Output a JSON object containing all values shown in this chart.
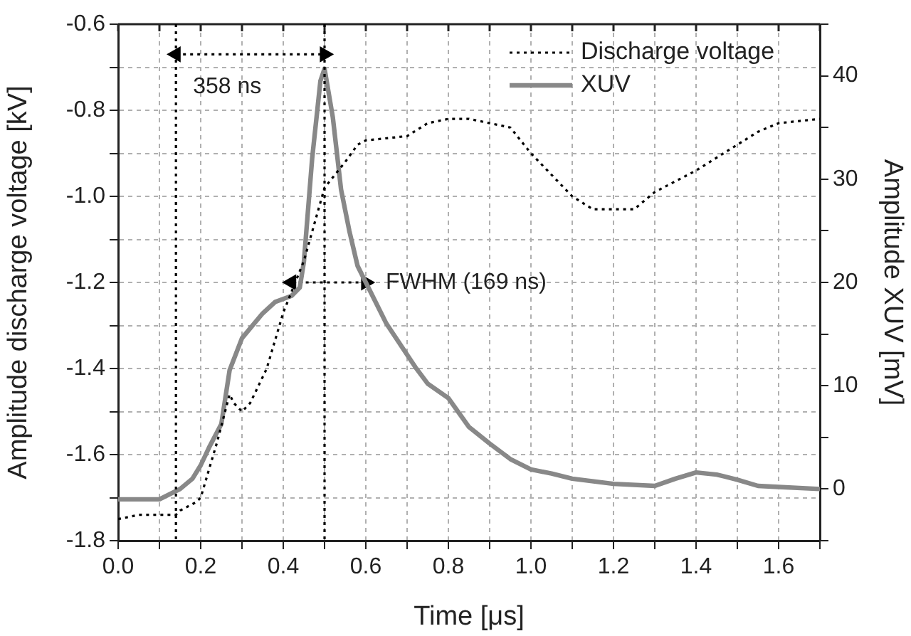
{
  "chart_data": {
    "type": "line",
    "xlabel": "Time [μs]",
    "ylabel": "Amplitude discharge voltage [kV]",
    "y2label": "Amplitude XUV [mV]",
    "series": [
      {
        "name": "Discharge voltage",
        "color": "#000000",
        "line_style": "dotted",
        "axis": "y",
        "x": [
          0,
          0.05,
          0.1,
          0.14,
          0.15,
          0.19,
          0.2,
          0.24,
          0.27,
          0.28,
          0.3,
          0.32,
          0.36,
          0.4,
          0.45,
          0.5,
          0.55,
          0.58,
          0.6,
          0.7,
          0.75,
          0.8,
          0.85,
          0.9,
          0.95,
          1.0,
          1.05,
          1.1,
          1.15,
          1.2,
          1.25,
          1.3,
          1.4,
          1.5,
          1.55,
          1.6,
          1.7
        ],
        "values": [
          -1.75,
          -1.74,
          -1.74,
          -1.74,
          -1.73,
          -1.71,
          -1.7,
          -1.57,
          -1.46,
          -1.48,
          -1.5,
          -1.48,
          -1.4,
          -1.27,
          -1.15,
          -0.98,
          -0.92,
          -0.88,
          -0.87,
          -0.86,
          -0.83,
          -0.82,
          -0.82,
          -0.83,
          -0.84,
          -0.9,
          -0.95,
          -1.0,
          -1.03,
          -1.03,
          -1.03,
          -0.99,
          -0.94,
          -0.88,
          -0.85,
          -0.83,
          -0.82
        ]
      },
      {
        "name": "XUV",
        "color": "#888888",
        "line_style": "solid",
        "axis": "y2",
        "x": [
          0,
          0.1,
          0.15,
          0.18,
          0.2,
          0.22,
          0.25,
          0.27,
          0.3,
          0.35,
          0.38,
          0.42,
          0.44,
          0.45,
          0.47,
          0.49,
          0.5,
          0.52,
          0.54,
          0.56,
          0.58,
          0.6,
          0.65,
          0.72,
          0.75,
          0.8,
          0.85,
          0.9,
          0.95,
          1.0,
          1.05,
          1.1,
          1.2,
          1.3,
          1.35,
          1.4,
          1.45,
          1.5,
          1.55,
          1.6,
          1.7
        ],
        "values": [
          -1,
          -1,
          0,
          1,
          2.3,
          4,
          6.3,
          11.5,
          14.6,
          17,
          18.1,
          18.7,
          19.5,
          22,
          32,
          39.5,
          40.7,
          36,
          29,
          25,
          21.6,
          20,
          16,
          11.8,
          10.2,
          8.8,
          6,
          4.4,
          2.9,
          1.9,
          1.5,
          1,
          0.5,
          0.3,
          1,
          1.6,
          1.4,
          0.9,
          0.3,
          0.2,
          0
        ]
      },
      {
        "color": "#000000",
        "line_style": "dotted",
        "marker": "triangle",
        "axis": "y",
        "x": [
          0.14,
          0.5
        ],
        "values": [
          -0.67,
          -0.67
        ]
      },
      {
        "color": "#000000",
        "line_style": "dotted",
        "marker": "triangle",
        "axis": "y",
        "x": [
          0.42,
          0.6
        ],
        "values": [
          -1.2,
          -1.2
        ]
      }
    ],
    "xlim": [
      0,
      1.7
    ],
    "xticks": [
      {
        "value": 0,
        "label": "0.0"
      },
      {
        "value": 0.1,
        "label": null
      },
      0.2,
      {
        "value": 0.3,
        "label": null
      },
      0.4,
      {
        "value": 0.5,
        "label": null
      },
      0.6,
      {
        "value": 0.7,
        "label": null
      },
      0.8,
      {
        "value": 0.9,
        "label": null
      },
      {
        "value": 1,
        "label": "1.0"
      },
      {
        "value": 1.1,
        "label": null
      },
      1.2,
      {
        "value": 1.3,
        "label": null
      },
      1.4,
      {
        "value": 1.5,
        "label": null
      },
      1.6,
      {
        "value": 1.7,
        "label": null
      }
    ],
    "ylim": [
      -1.8,
      -0.6
    ],
    "yticks": [
      -1.8,
      {
        "value": -1.7,
        "label": null
      },
      -1.6,
      {
        "value": -1.5,
        "label": null
      },
      -1.4,
      {
        "value": -1.3,
        "label": null
      },
      -1.2,
      {
        "value": -1.1,
        "label": null
      },
      {
        "value": -1,
        "label": "-1.0"
      },
      {
        "value": -0.9,
        "label": null
      },
      -0.8,
      {
        "value": -0.7,
        "label": null
      },
      -0.6
    ],
    "y2lim": [
      -5,
      45
    ],
    "y2ticks": [
      {
        "value": -5,
        "label": null
      },
      0,
      {
        "value": 5,
        "label": null
      },
      10,
      {
        "value": 15,
        "label": null
      },
      20,
      {
        "value": 25,
        "label": null
      },
      30,
      {
        "value": 35,
        "label": null
      },
      40,
      {
        "value": 45,
        "label": null
      }
    ],
    "ref_lines": [
      {
        "axis": "x",
        "value": 0.14,
        "color": "#000000",
        "line_style": "dotted"
      },
      {
        "axis": "x",
        "value": 0.5,
        "color": "#000000",
        "line_style": "dotted"
      }
    ],
    "annotations": [
      {
        "text": "358 ns",
        "x": 0.14,
        "y": -0.67
      },
      {
        "text": "FWHM (169 ns)",
        "x": 0.6,
        "y": -1.2
      }
    ],
    "grid": true,
    "legend": "top right"
  }
}
